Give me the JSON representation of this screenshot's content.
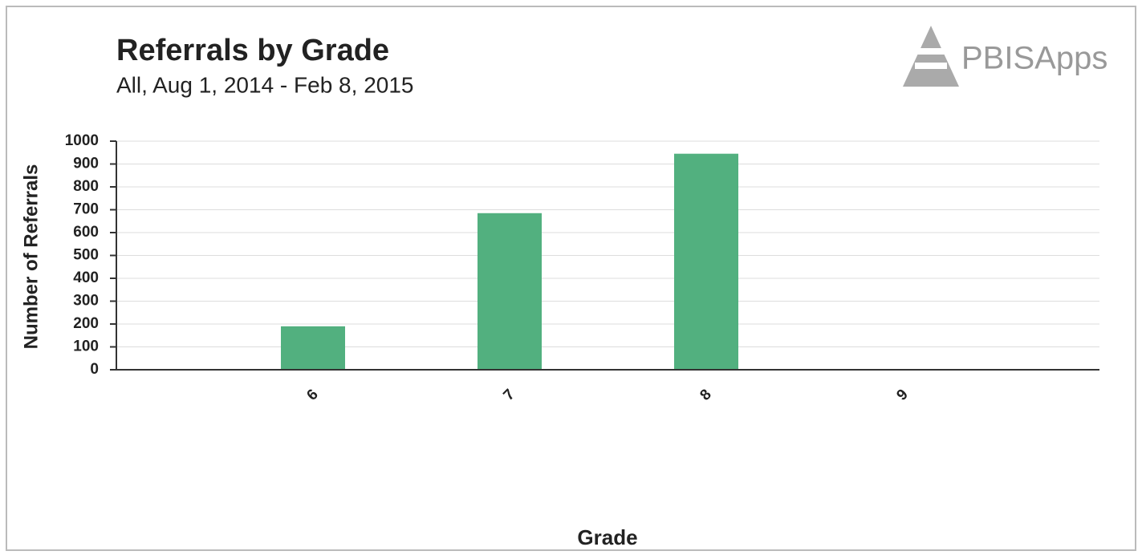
{
  "chart_data": {
    "type": "bar",
    "title": "Referrals by Grade",
    "subtitle": "All, Aug 1, 2014 - Feb 8, 2015",
    "logo": "PBISApps",
    "x_label": "Grade",
    "y_label": "Number of Referrals",
    "categories": [
      "6",
      "7",
      "8",
      "9"
    ],
    "values": [
      190,
      685,
      945,
      2
    ],
    "color": "#52b07f",
    "ylim": [
      0,
      1000
    ],
    "yticks": [
      0,
      100,
      200,
      300,
      400,
      500,
      600,
      700,
      800,
      900,
      1000
    ],
    "grid": true
  }
}
